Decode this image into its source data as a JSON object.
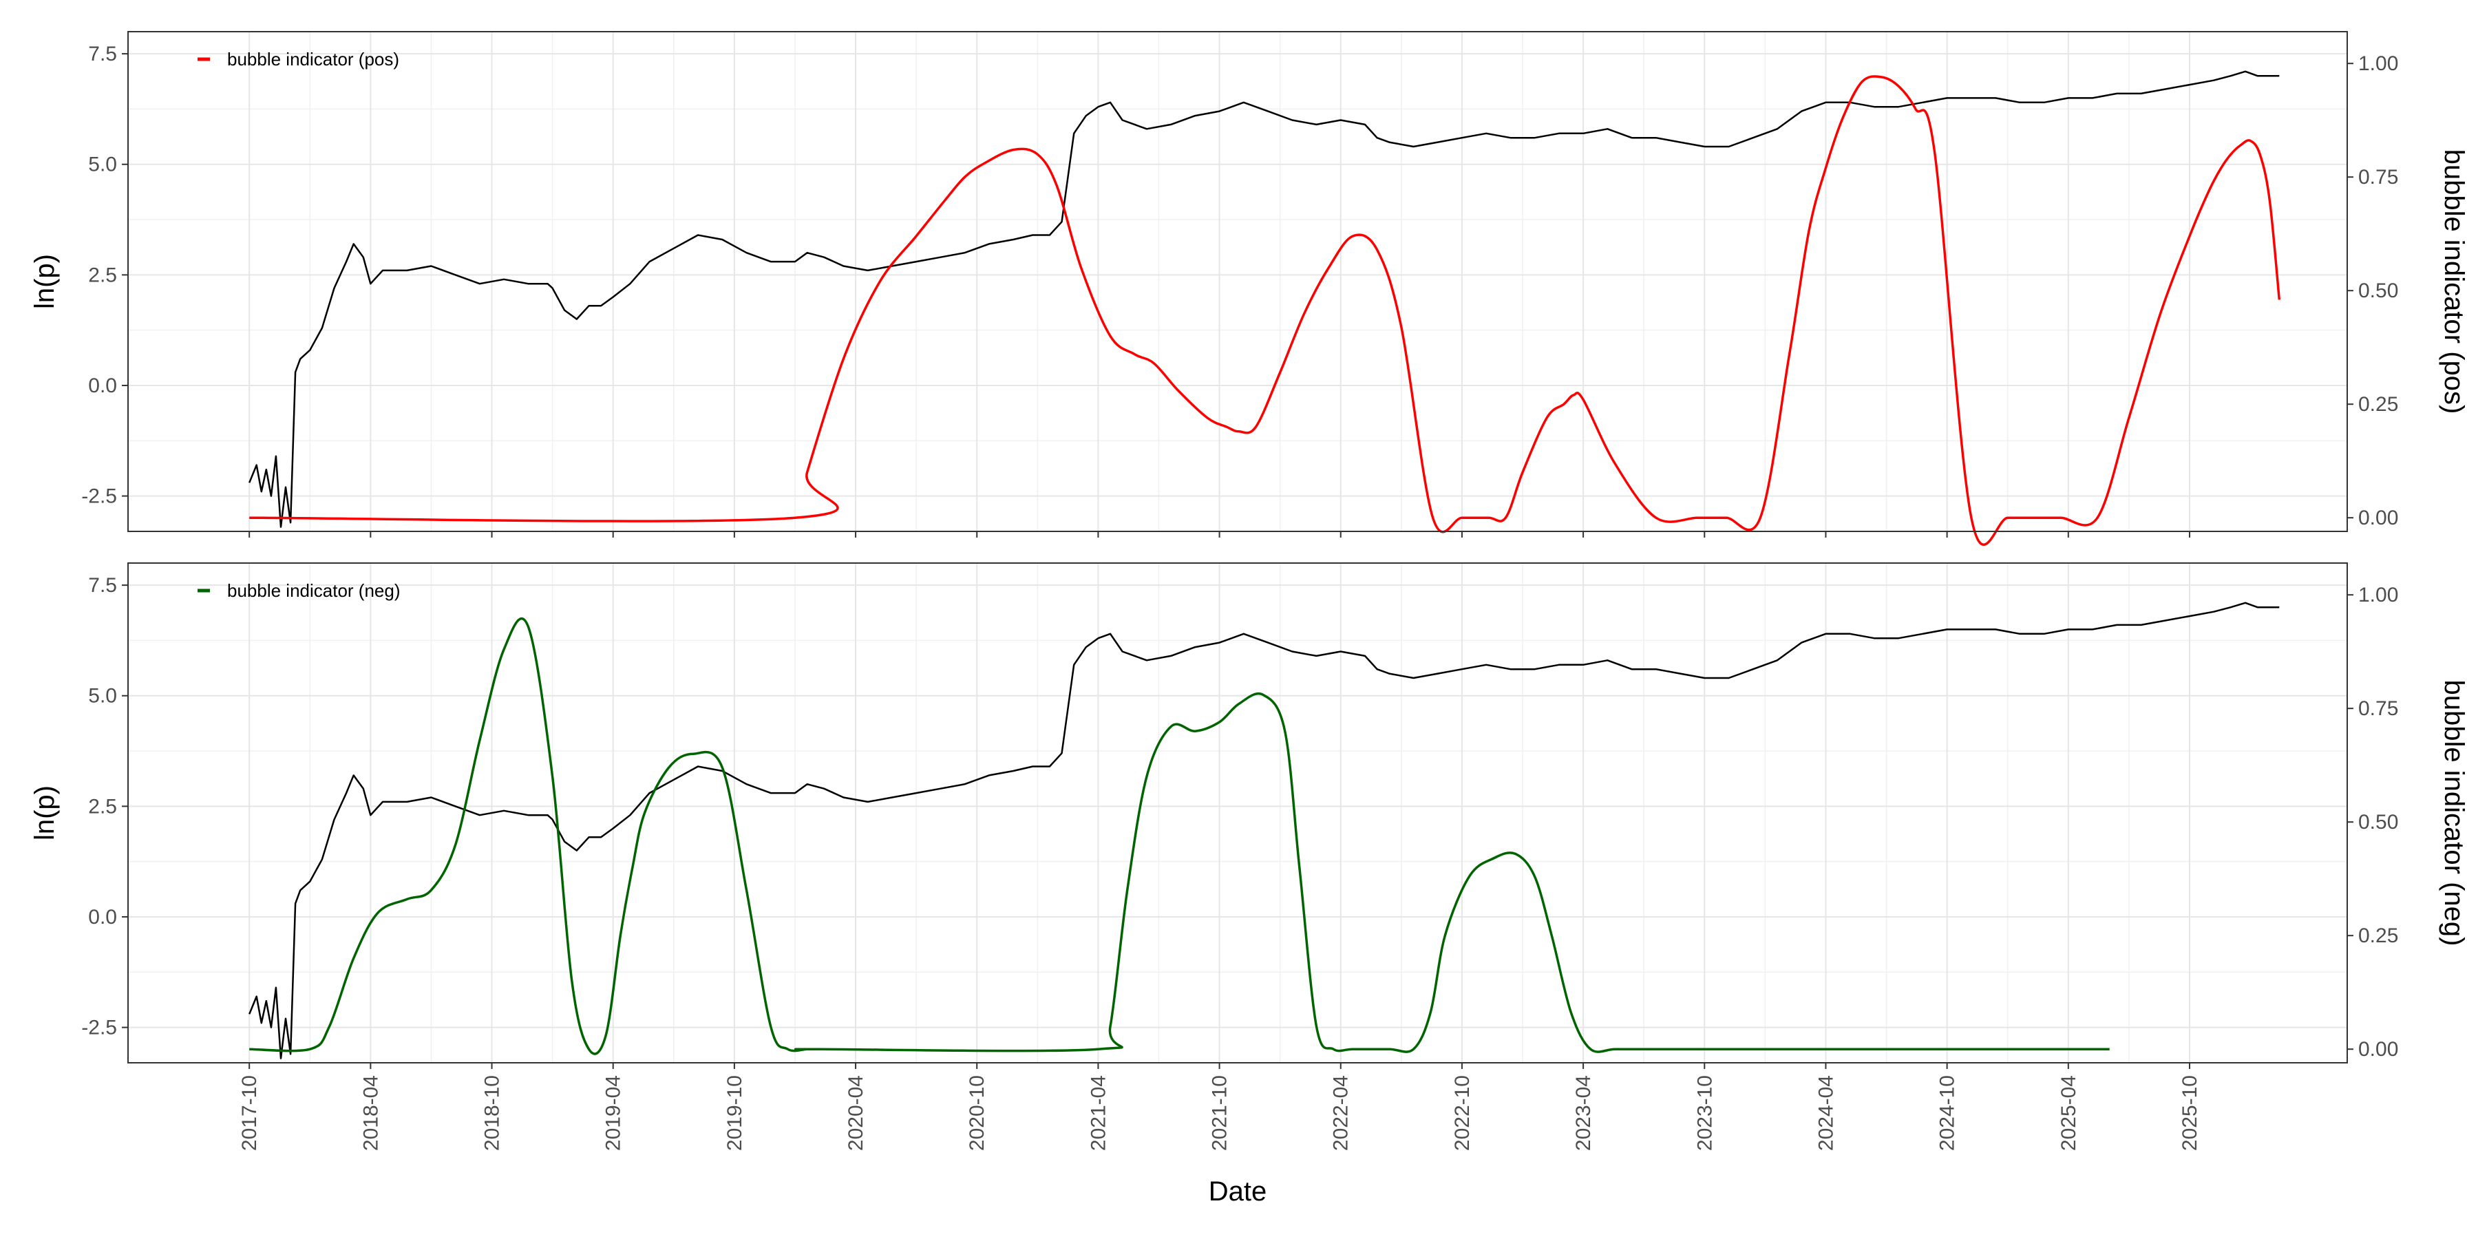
{
  "chart_data": [
    {
      "type": "line",
      "panel": "top",
      "ylabel_left": "ln(p)",
      "ylabel_right": "bubble indicator (pos)",
      "legend": "bubble indicator (pos)",
      "legend_position": "top-left",
      "ylim_left": [
        -3.3,
        8.0
      ],
      "ylim_right": [
        -0.03,
        1.07
      ],
      "yticks_left": [
        -2.5,
        0.0,
        2.5,
        5.0,
        7.5
      ],
      "yticks_left_labels": [
        "-2.5",
        "0.0",
        "2.5",
        "5.0",
        "7.5"
      ],
      "yticks_right": [
        0.0,
        0.25,
        0.5,
        0.75,
        1.0
      ],
      "yticks_right_labels": [
        "0.00",
        "0.25",
        "0.50",
        "0.75",
        "1.00"
      ],
      "price_color": "#000000",
      "indicator_color": "#ff0000",
      "indicator": {
        "x": [
          2017.75,
          2020.0,
          2020.05,
          2020.2,
          2020.35,
          2020.5,
          2020.62,
          2020.7,
          2020.78,
          2020.9,
          2021.0,
          2021.08,
          2021.18,
          2021.3,
          2021.4,
          2021.48,
          2021.58,
          2021.7,
          2021.78,
          2021.83,
          2021.9,
          2022.0,
          2022.1,
          2022.2,
          2022.3,
          2022.4,
          2022.5,
          2022.63,
          2022.75,
          2022.86,
          2022.93,
          2023.0,
          2023.1,
          2023.17,
          2023.21,
          2023.25,
          2023.38,
          2023.55,
          2023.72,
          2023.84,
          2023.98,
          2024.1,
          2024.18,
          2024.25,
          2024.32,
          2024.4,
          2024.48,
          2024.55,
          2024.62,
          2024.7,
          2024.85,
          2025.0,
          2025.12,
          2025.22,
          2025.37,
          2025.5,
          2025.63,
          2025.75,
          2025.83,
          2025.88,
          2025.92,
          2025.96,
          2026.0,
          2026.04,
          2026.08,
          2026.12
        ],
        "values": [
          0.0,
          0.0,
          0.1,
          0.35,
          0.52,
          0.62,
          0.7,
          0.75,
          0.78,
          0.81,
          0.8,
          0.73,
          0.55,
          0.4,
          0.36,
          0.34,
          0.28,
          0.22,
          0.2,
          0.19,
          0.2,
          0.32,
          0.45,
          0.55,
          0.62,
          0.59,
          0.42,
          0.0,
          0.0,
          0.0,
          0.0,
          0.1,
          0.22,
          0.25,
          0.27,
          0.26,
          0.12,
          0.0,
          0.0,
          0.0,
          0.0,
          0.36,
          0.63,
          0.77,
          0.88,
          0.96,
          0.97,
          0.95,
          0.9,
          0.8,
          0.0,
          0.0,
          0.0,
          0.0,
          0.0,
          0.22,
          0.45,
          0.62,
          0.72,
          0.77,
          0.8,
          0.82,
          0.83,
          0.8,
          0.7,
          0.48
        ]
      }
    },
    {
      "type": "line",
      "panel": "bottom",
      "ylabel_left": "ln(p)",
      "ylabel_right": "bubble indicator (neg)",
      "legend": "bubble indicator (neg)",
      "legend_position": "top-left",
      "xlabel": "Date",
      "ylim_left": [
        -3.3,
        8.0
      ],
      "ylim_right": [
        -0.03,
        1.07
      ],
      "yticks_left": [
        -2.5,
        0.0,
        2.5,
        5.0,
        7.5
      ],
      "yticks_left_labels": [
        "-2.5",
        "0.0",
        "2.5",
        "5.0",
        "7.5"
      ],
      "yticks_right": [
        0.0,
        0.25,
        0.5,
        0.75,
        1.0
      ],
      "yticks_right_labels": [
        "0.00",
        "0.25",
        "0.50",
        "0.75",
        "1.00"
      ],
      "price_color": "#000000",
      "indicator_color": "#006400",
      "indicator": {
        "x": [
          2017.75,
          2018.0,
          2018.08,
          2018.18,
          2018.28,
          2018.4,
          2018.5,
          2018.6,
          2018.7,
          2018.8,
          2018.9,
          2019.0,
          2019.08,
          2019.15,
          2019.22,
          2019.28,
          2019.33,
          2019.38,
          2019.48,
          2019.58,
          2019.7,
          2019.8,
          2019.9,
          2019.97,
          2020.05,
          2020.1,
          2021.25,
          2021.3,
          2021.37,
          2021.45,
          2021.55,
          2021.65,
          2021.75,
          2021.83,
          2021.93,
          2022.02,
          2022.08,
          2022.15,
          2022.22,
          2022.3,
          2022.45,
          2022.55,
          2022.62,
          2022.68,
          2022.78,
          2022.88,
          2022.97,
          2023.05,
          2023.12,
          2023.2,
          2023.28,
          2023.38,
          2023.5,
          2023.55,
          2025.42
        ],
        "values": [
          0.0,
          0.0,
          0.05,
          0.2,
          0.3,
          0.33,
          0.35,
          0.45,
          0.68,
          0.88,
          0.93,
          0.6,
          0.15,
          0.0,
          0.03,
          0.25,
          0.4,
          0.52,
          0.62,
          0.65,
          0.62,
          0.35,
          0.05,
          0.0,
          0.0,
          0.0,
          0.0,
          0.05,
          0.35,
          0.6,
          0.71,
          0.7,
          0.72,
          0.76,
          0.78,
          0.7,
          0.4,
          0.05,
          0.0,
          0.0,
          0.0,
          0.0,
          0.08,
          0.25,
          0.38,
          0.42,
          0.43,
          0.38,
          0.25,
          0.08,
          0.0,
          0.0,
          0.0,
          0.0,
          0.0
        ]
      }
    }
  ],
  "shared": {
    "xlabel": "Date",
    "xlim": [
      2017.25,
      2026.4
    ],
    "xticks": [
      2017.75,
      2018.25,
      2018.75,
      2019.25,
      2019.75,
      2020.25,
      2020.75,
      2021.25,
      2021.75,
      2022.25,
      2022.75,
      2023.25,
      2023.75,
      2024.25,
      2024.75,
      2025.25,
      2025.75
    ],
    "xtick_labels": [
      "2017-10",
      "2018-04",
      "2018-10",
      "2019-04",
      "2019-10",
      "2020-04",
      "2020-10",
      "2021-04",
      "2021-10",
      "2022-04",
      "2022-10",
      "2023-04",
      "2023-10",
      "2024-04",
      "2024-10",
      "2025-04",
      "2025-10"
    ],
    "price": {
      "x": [
        2017.75,
        2017.78,
        2017.8,
        2017.82,
        2017.84,
        2017.86,
        2017.88,
        2017.9,
        2017.92,
        2017.94,
        2017.96,
        2018.0,
        2018.05,
        2018.1,
        2018.15,
        2018.18,
        2018.22,
        2018.25,
        2018.3,
        2018.4,
        2018.5,
        2018.6,
        2018.7,
        2018.8,
        2018.9,
        2018.98,
        2019.0,
        2019.05,
        2019.1,
        2019.15,
        2019.2,
        2019.25,
        2019.32,
        2019.4,
        2019.5,
        2019.6,
        2019.7,
        2019.8,
        2019.9,
        2020.0,
        2020.05,
        2020.12,
        2020.2,
        2020.3,
        2020.4,
        2020.5,
        2020.6,
        2020.7,
        2020.8,
        2020.9,
        2020.98,
        2021.05,
        2021.1,
        2021.15,
        2021.2,
        2021.25,
        2021.3,
        2021.35,
        2021.45,
        2021.55,
        2021.65,
        2021.75,
        2021.85,
        2021.95,
        2022.05,
        2022.15,
        2022.25,
        2022.35,
        2022.4,
        2022.45,
        2022.55,
        2022.65,
        2022.75,
        2022.85,
        2022.95,
        2023.05,
        2023.15,
        2023.25,
        2023.35,
        2023.45,
        2023.55,
        2023.65,
        2023.75,
        2023.85,
        2023.95,
        2024.05,
        2024.15,
        2024.25,
        2024.35,
        2024.45,
        2024.55,
        2024.65,
        2024.75,
        2024.85,
        2024.95,
        2025.05,
        2025.15,
        2025.25,
        2025.35,
        2025.45,
        2025.55,
        2025.65,
        2025.75,
        2025.85,
        2025.92,
        2025.98,
        2026.03,
        2026.08,
        2026.12
      ],
      "values": [
        -2.2,
        -1.8,
        -2.4,
        -1.9,
        -2.5,
        -1.6,
        -3.2,
        -2.3,
        -3.1,
        0.3,
        0.6,
        0.8,
        1.3,
        2.2,
        2.8,
        3.2,
        2.9,
        2.3,
        2.6,
        2.6,
        2.7,
        2.5,
        2.3,
        2.4,
        2.3,
        2.3,
        2.2,
        1.7,
        1.5,
        1.8,
        1.8,
        2.0,
        2.3,
        2.8,
        3.1,
        3.4,
        3.3,
        3.0,
        2.8,
        2.8,
        3.0,
        2.9,
        2.7,
        2.6,
        2.7,
        2.8,
        2.9,
        3.0,
        3.2,
        3.3,
        3.4,
        3.4,
        3.7,
        5.7,
        6.1,
        6.3,
        6.4,
        6.0,
        5.8,
        5.9,
        6.1,
        6.2,
        6.4,
        6.2,
        6.0,
        5.9,
        6.0,
        5.9,
        5.6,
        5.5,
        5.4,
        5.5,
        5.6,
        5.7,
        5.6,
        5.6,
        5.7,
        5.7,
        5.8,
        5.6,
        5.6,
        5.5,
        5.4,
        5.4,
        5.6,
        5.8,
        6.2,
        6.4,
        6.4,
        6.3,
        6.3,
        6.4,
        6.5,
        6.5,
        6.5,
        6.4,
        6.4,
        6.5,
        6.5,
        6.6,
        6.6,
        6.7,
        6.8,
        6.9,
        7.0,
        7.1,
        7.0,
        7.0,
        7.0
      ]
    }
  }
}
